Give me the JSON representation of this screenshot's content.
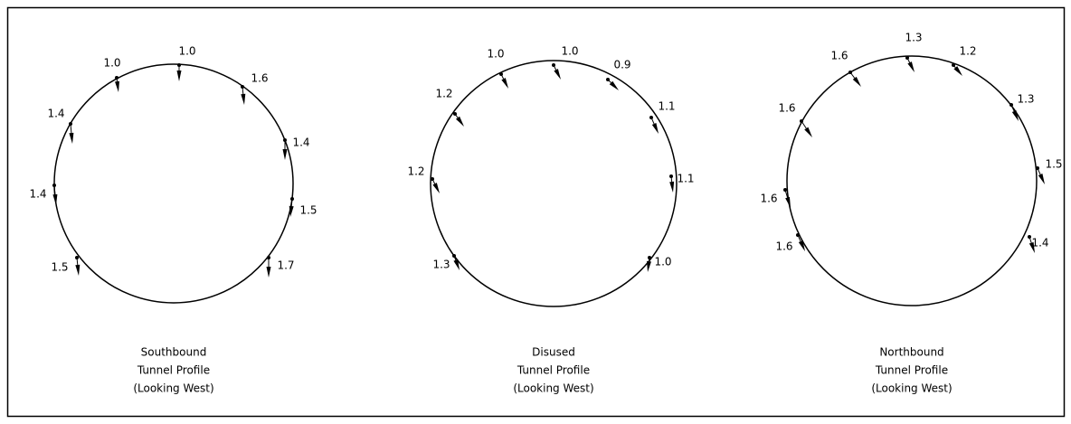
{
  "profiles": [
    {
      "caption": [
        "Southbound",
        "Tunnel Profile",
        "(Looking West)"
      ],
      "labels": [
        "1.0",
        "1.6",
        "1.4",
        "1.5",
        "1.7",
        "1.5",
        "1.4",
        "1.4",
        "1.0"
      ]
    },
    {
      "caption": [
        "Disused",
        "Tunnel Profile",
        "(Looking West)"
      ],
      "labels": [
        "1.0",
        "0.9",
        "1.1",
        "1.1",
        "1.0",
        "1.3",
        "1.2",
        "1.2",
        "1.0"
      ]
    },
    {
      "caption": [
        "Northbound",
        "Tunnel Profile",
        "(Looking West)"
      ],
      "labels": [
        "1.3",
        "1.2",
        "1.3",
        "1.5",
        "1.4",
        "1.6",
        "1.6",
        "1.6",
        "1.6"
      ]
    }
  ]
}
